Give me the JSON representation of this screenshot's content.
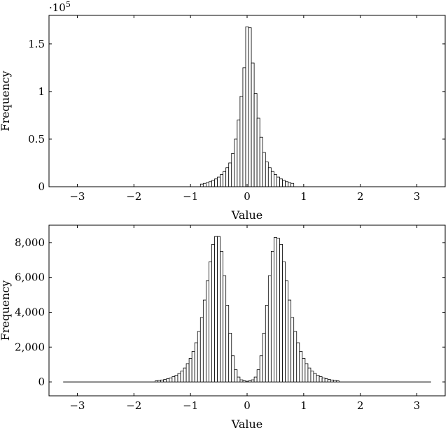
{
  "chart_data": [
    {
      "type": "bar",
      "xlabel": "Value",
      "ylabel": "Frequency",
      "y_exponent_label": "·10",
      "y_exponent_power": "5",
      "xlim": [
        -3.5,
        3.5
      ],
      "ylim": [
        0,
        180000
      ],
      "x_ticks": [
        -3,
        -2,
        -1,
        0,
        1,
        2,
        3
      ],
      "x_tick_labels": [
        "−3",
        "−2",
        "−1",
        "0",
        "1",
        "2",
        "3"
      ],
      "y_ticks": [
        0,
        50000,
        100000,
        150000
      ],
      "y_tick_labels": [
        "0",
        "0.5",
        "1",
        "1.5"
      ],
      "bin_width": 0.05,
      "x": [
        -0.8,
        -0.75,
        -0.7,
        -0.65,
        -0.6,
        -0.55,
        -0.5,
        -0.45,
        -0.4,
        -0.35,
        -0.3,
        -0.25,
        -0.2,
        -0.15,
        -0.1,
        -0.05,
        0.0,
        0.05,
        0.1,
        0.15,
        0.2,
        0.25,
        0.3,
        0.35,
        0.4,
        0.45,
        0.5,
        0.55,
        0.6,
        0.65,
        0.7,
        0.75,
        0.8
      ],
      "values": [
        2800,
        3500,
        4300,
        5300,
        6600,
        8200,
        10200,
        12800,
        16000,
        20000,
        25000,
        35000,
        50000,
        70000,
        95000,
        125000,
        168000,
        167000,
        130000,
        98000,
        72000,
        52000,
        36000,
        26000,
        20000,
        16000,
        12800,
        10200,
        8200,
        6600,
        5300,
        4300,
        3500
      ],
      "grid": false
    },
    {
      "type": "bar",
      "xlabel": "Value",
      "ylabel": "Frequency",
      "xlim": [
        -3.5,
        3.5
      ],
      "ylim": [
        -800,
        9000
      ],
      "x_ticks": [
        -3,
        -2,
        -1,
        0,
        1,
        2,
        3
      ],
      "x_tick_labels": [
        "−3",
        "−2",
        "−1",
        "0",
        "1",
        "2",
        "3"
      ],
      "y_ticks": [
        0,
        2000,
        4000,
        6000,
        8000
      ],
      "y_tick_labels": [
        "0",
        "2,000",
        "4,000",
        "6,000",
        "8,000"
      ],
      "bin_width": 0.05,
      "x": [
        -1.6,
        -1.55,
        -1.5,
        -1.45,
        -1.4,
        -1.35,
        -1.3,
        -1.25,
        -1.2,
        -1.15,
        -1.1,
        -1.05,
        -1.0,
        -0.95,
        -0.9,
        -0.85,
        -0.8,
        -0.75,
        -0.7,
        -0.65,
        -0.6,
        -0.55,
        -0.5,
        -0.45,
        -0.4,
        -0.35,
        -0.3,
        -0.25,
        -0.2,
        -0.15,
        -0.1,
        -0.05,
        0.0,
        0.05,
        0.1,
        0.15,
        0.2,
        0.25,
        0.3,
        0.35,
        0.4,
        0.45,
        0.5,
        0.55,
        0.6,
        0.65,
        0.7,
        0.75,
        0.8,
        0.85,
        0.9,
        0.95,
        1.0,
        1.05,
        1.1,
        1.15,
        1.2,
        1.25,
        1.3,
        1.35,
        1.4,
        1.45,
        1.5,
        1.55,
        1.6
      ],
      "values": [
        60,
        80,
        110,
        140,
        180,
        230,
        300,
        380,
        480,
        620,
        800,
        1050,
        1350,
        1750,
        2250,
        2900,
        3700,
        4700,
        5800,
        6900,
        7900,
        8350,
        8350,
        7500,
        6100,
        4400,
        2800,
        1500,
        700,
        280,
        120,
        60,
        40,
        60,
        120,
        280,
        700,
        1500,
        2800,
        4400,
        6100,
        7500,
        8300,
        8250,
        7900,
        6900,
        5800,
        4700,
        3700,
        2900,
        2250,
        1750,
        1350,
        1050,
        800,
        620,
        480,
        380,
        300,
        230,
        180,
        140,
        110,
        80,
        60
      ],
      "grid": false
    }
  ]
}
